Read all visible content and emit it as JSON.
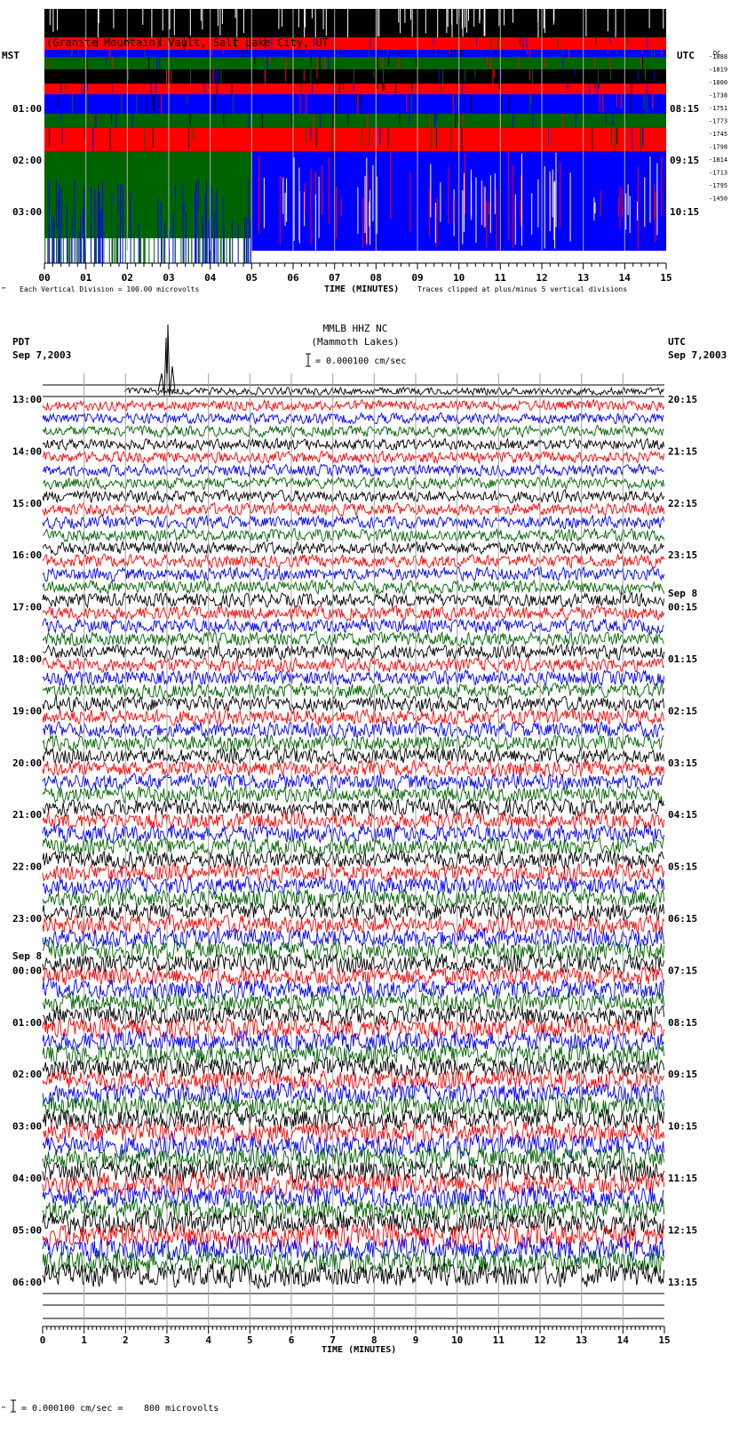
{
  "chart_data": [
    {
      "type": "line",
      "title": "(Granite Mountain) Vault, Salt Lake City, UT",
      "left_timezone": "MST",
      "right_timezone": "UTC",
      "left_hours": [
        "01:00",
        "02:00",
        "03:00"
      ],
      "right_hours": [
        "08:15",
        "09:15",
        "10:15"
      ],
      "trace_offsets": [
        "-1888",
        "-1819",
        "-1800",
        "-1738",
        "-1751",
        "-1773",
        "-1745",
        "-1798",
        "-1814",
        "-1713",
        "-1795",
        "-1450"
      ],
      "trace_offsets_header": "DC",
      "xlabel": "TIME (MINUTES)",
      "x_ticks": [
        "00",
        "01",
        "02",
        "03",
        "04",
        "05",
        "06",
        "07",
        "08",
        "09",
        "10",
        "11",
        "12",
        "13",
        "14",
        "15"
      ],
      "xlim": [
        0,
        15
      ],
      "scale_note": "Each Vertical Division = 100.00 microvolts",
      "clip_note": "Traces clipped at plus/minus 5 vertical divisions",
      "corner_mark": "™",
      "colors": [
        "#000000",
        "#ff0000",
        "#0000ff",
        "#006400"
      ]
    },
    {
      "type": "line",
      "title": "MMLB HHZ NC",
      "subtitle": "(Mammoth Lakes)",
      "scale_bar": "= 0.000100 cm/sec",
      "left_timezone": "PDT",
      "left_date": "Sep 7,2003",
      "right_timezone": "UTC",
      "right_date": "Sep 7,2003",
      "left_hours": [
        "13:00",
        "14:00",
        "15:00",
        "16:00",
        "17:00",
        "18:00",
        "19:00",
        "20:00",
        "21:00",
        "22:00",
        "23:00",
        "00:00",
        "01:00",
        "02:00",
        "03:00",
        "04:00",
        "05:00",
        "06:00"
      ],
      "left_date_change": {
        "label": "Sep 8",
        "before_hour": "00:00"
      },
      "right_hours": [
        "20:15",
        "21:15",
        "22:15",
        "23:15",
        "00:15",
        "01:15",
        "02:15",
        "03:15",
        "04:15",
        "05:15",
        "06:15",
        "07:15",
        "08:15",
        "09:15",
        "10:15",
        "11:15",
        "12:15",
        "13:15"
      ],
      "right_date_change": {
        "label": "Sep 8",
        "before_hour": "00:15"
      },
      "xlabel": "TIME (MINUTES)",
      "x_ticks": [
        "0",
        "1",
        "2",
        "3",
        "4",
        "5",
        "6",
        "7",
        "8",
        "9",
        "10",
        "11",
        "12",
        "13",
        "14",
        "15"
      ],
      "xlim": [
        0,
        15
      ],
      "colors": [
        "#000000",
        "#ff0000",
        "#0000ff",
        "#006400"
      ],
      "footer_scale": "= 0.000100 cm/sec =",
      "footer_microvolts": "800 microvolts",
      "corner_mark": "™"
    }
  ]
}
